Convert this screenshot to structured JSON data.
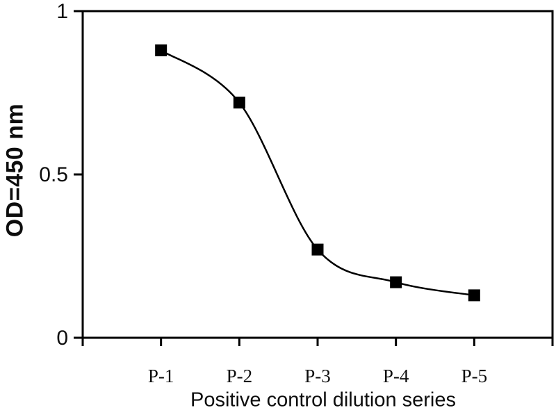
{
  "figure": {
    "background": "#ffffff",
    "axis_color": "#000000",
    "text_color": "#0d0d0d"
  },
  "chart_data": {
    "type": "line",
    "title": "",
    "categories": [
      "P-1",
      "P-2",
      "P-3",
      "P-4",
      "P-5"
    ],
    "values": [
      0.88,
      0.72,
      0.27,
      0.17,
      0.13
    ],
    "xlabel": "Positive control dilution series",
    "ylabel": "OD=450 nm",
    "ylim": [
      0,
      1
    ],
    "yticks": [
      0,
      0.5,
      1
    ],
    "ytick_labels": [
      "0",
      "0.5",
      "1"
    ],
    "line_color": "#000000",
    "marker": "square",
    "marker_color": "#000000",
    "curve": "smooth",
    "grid": false,
    "legend": "none"
  }
}
